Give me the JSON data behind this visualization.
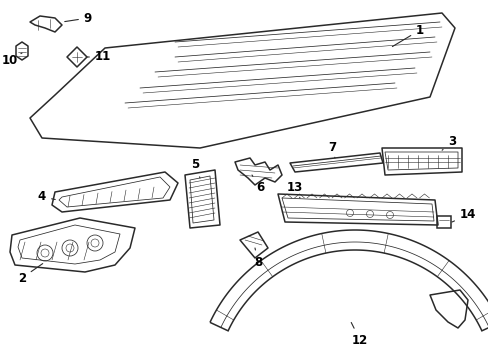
{
  "bg_color": "#ffffff",
  "line_color": "#2a2a2a",
  "label_color": "#000000",
  "lw_main": 1.1,
  "lw_thin": 0.55,
  "lw_detail": 0.4,
  "figsize": [
    4.89,
    3.6
  ],
  "dpi": 100
}
